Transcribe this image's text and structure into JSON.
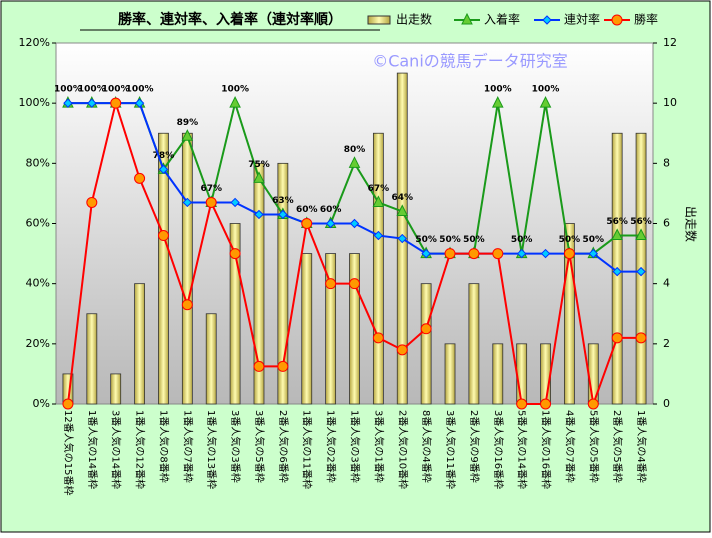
{
  "chart_data": {
    "type": "combo",
    "title": "勝率、連対率、入着率（連対率順）",
    "watermark": "©Caniの競馬データ研究室",
    "y2label": "出走数",
    "categories": [
      "12番人気の15番枠",
      "1番人気の14番枠",
      "3番人気の14番枠",
      "1番人気の12番枠",
      "1番人気の8番枠",
      "1番人気の7番枠",
      "1番人気の13番枠",
      "3番人気の3番枠",
      "3番人気の5番枠",
      "2番人気の6番枠",
      "1番人気の11番枠",
      "1番人気の2番枠",
      "1番人気の3番枠",
      "3番人気の1番枠",
      "2番人気の10番枠",
      "8番人気の4番枠",
      "3番人気の11番枠",
      "2番人気の9番枠",
      "3番人気の16番枠",
      "5番人気の14番枠",
      "1番人気の16番枠",
      "4番人気の7番枠",
      "5番人気の5番枠",
      "2番人気の5番枠",
      "1番人気の4番枠"
    ],
    "series": [
      {
        "name": "出走数",
        "type": "bar",
        "axis": "y2",
        "color": "#f0e68c",
        "values": [
          1,
          3,
          1,
          4,
          9,
          9,
          3,
          6,
          8,
          8,
          5,
          5,
          5,
          9,
          11,
          4,
          2,
          4,
          2,
          2,
          2,
          6,
          2,
          9,
          9
        ]
      },
      {
        "name": "入着率",
        "type": "line",
        "marker": "triangle",
        "color": "#1a9a1a",
        "values": [
          100,
          100,
          100,
          100,
          78,
          89,
          67,
          100,
          75,
          63,
          60,
          60,
          80,
          67,
          64,
          50,
          50,
          50,
          100,
          50,
          100,
          50,
          50,
          56,
          56
        ],
        "value_labels": [
          "100%",
          "100%",
          "100%",
          "100%",
          "78%",
          "89%",
          "67%",
          "100%",
          "75%",
          "63%",
          "60%",
          "60%",
          "80%",
          "67%",
          "64%",
          "50%",
          "50%",
          "50%",
          "100%",
          "50%",
          "100%",
          "50%",
          "50%",
          "56%",
          "56%"
        ]
      },
      {
        "name": "連対率",
        "type": "line",
        "marker": "diamond",
        "color": "#0033ff",
        "values": [
          100,
          100,
          100,
          100,
          78,
          67,
          67,
          67,
          63,
          63,
          60,
          60,
          60,
          56,
          55,
          50,
          50,
          50,
          50,
          50,
          50,
          50,
          50,
          44,
          44
        ]
      },
      {
        "name": "勝率",
        "type": "line",
        "marker": "circle",
        "color": "#ff0000",
        "values": [
          0,
          67,
          100,
          75,
          56,
          33,
          67,
          50,
          12.5,
          12.5,
          60,
          40,
          40,
          22,
          18,
          25,
          50,
          50,
          50,
          0,
          0,
          50,
          0,
          22,
          22
        ]
      }
    ],
    "ylim": [
      0,
      120
    ],
    "yticks": [
      {
        "value": 0,
        "label": "0%"
      },
      {
        "value": 20,
        "label": "20%"
      },
      {
        "value": 40,
        "label": "40%"
      },
      {
        "value": 60,
        "label": "60%"
      },
      {
        "value": 80,
        "label": "80%"
      },
      {
        "value": 100,
        "label": "100%"
      },
      {
        "value": 120,
        "label": "120%"
      }
    ],
    "y2lim": [
      0,
      12
    ],
    "y2ticks": [
      0,
      2,
      4,
      6,
      8,
      10,
      12
    ]
  }
}
